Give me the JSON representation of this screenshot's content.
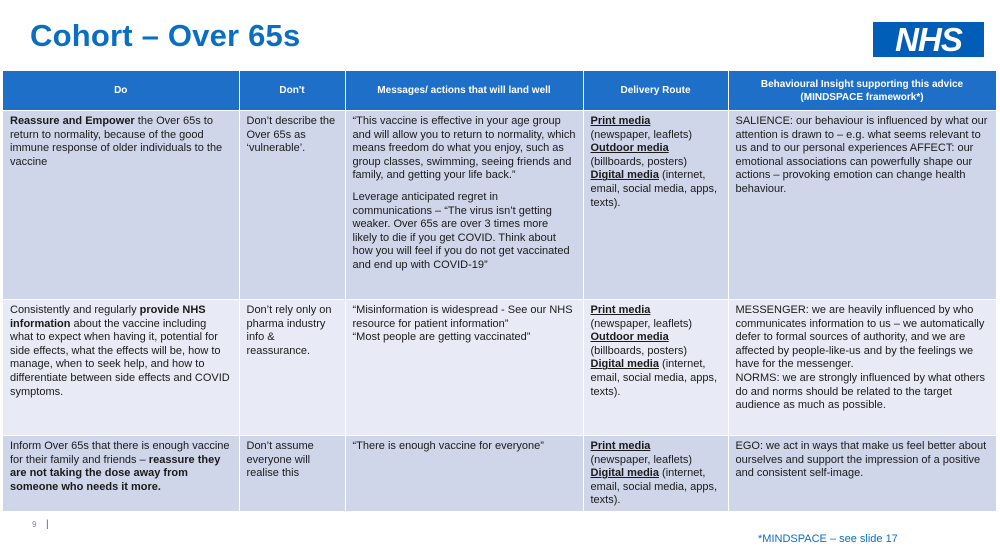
{
  "title": "Cohort – Over 65s",
  "logo": "NHS",
  "colors": {
    "accent": "#0a6fc2",
    "header": "#1e6fc8",
    "row_dark": "#cfd6ea",
    "row_light": "#e8ebf5"
  },
  "headers": {
    "do": "Do",
    "dont": "Don't",
    "messages": "Messages/ actions that will land well",
    "delivery": "Delivery Route",
    "insight_1": "Behavioural Insight supporting this advice",
    "insight_2": "(MINDSPACE framework*)"
  },
  "rows": [
    {
      "do_bold": "Reassure and Empower",
      "do_rest": " the Over 65s to return to normality, because of the good immune response of older individuals to the vaccine",
      "dont": "Don’t describe the Over 65s as ‘vulnerable’.",
      "msg_1": "“This vaccine is effective in your age group and will allow you to return to normality, which means freedom do what you enjoy, such as group classes, swimming, seeing friends and family, and getting your life back.”",
      "msg_2": "Leverage anticipated regret in communications – “The virus isn’t getting weaker. Over 65s are over 3 times more likely to die if you get COVID. Think about how you will feel if you do not get vaccinated and end up with COVID-19”",
      "print_label": "Print media",
      "print_detail": "(newspaper, leaflets)",
      "outdoor_label": "Outdoor media",
      "outdoor_detail": "(billboards, posters)",
      "digital_label": "Digital media",
      "digital_detail": " (internet, email, social media, apps, texts).",
      "insight": "SALIENCE: our behaviour is influenced by what our attention is drawn to – e.g. what seems relevant to us and to our personal experiences AFFECT: our emotional associations can powerfully shape our actions – provoking emotion can change health behaviour."
    },
    {
      "do_pre": "Consistently and regularly ",
      "do_bold": "provide NHS information",
      "do_rest": " about the vaccine including what to expect when having it, potential for side effects, what the effects will be, how to manage, when to seek help, and how to differentiate between side effects and COVID symptoms.",
      "dont": "Don’t rely only on pharma industry info & reassurance.",
      "msg_1": "“Misinformation is widespread - See our NHS resource for patient information”",
      "msg_2": "“Most people are getting vaccinated”",
      "print_label": "Print media",
      "print_detail": "(newspaper, leaflets)",
      "outdoor_label": "Outdoor media",
      "outdoor_detail": "(billboards, posters)",
      "digital_label": "Digital media",
      "digital_detail": " (internet, email, social media, apps, texts).",
      "insight_1": "MESSENGER: we are heavily influenced by who communicates information to us – we automatically defer to formal sources of authority, and we are affected by people-like-us and by the feelings we have for the messenger.",
      "insight_2": "NORMS: we are strongly influenced by what others do and norms should be related to the target audience as much as possible."
    },
    {
      "do_pre": "Inform Over 65s that there is enough vaccine for their family and friends – ",
      "do_bold": "reassure they are not taking the dose away from someone who needs it more.",
      "dont": "Don’t assume everyone will realise this",
      "msg_1": "“There is enough vaccine for everyone”",
      "print_label": "Print media",
      "print_detail": "(newspaper, leaflets)",
      "digital_label": "Digital media",
      "digital_detail": " (internet, email, social media, apps, texts).",
      "insight": "EGO: we act in ways that make us feel better about ourselves and support the impression of a positive and consistent self-image."
    }
  ],
  "footer": {
    "page_number": "9",
    "separator": "|",
    "footnote": "*MINDSPACE – see slide 17"
  }
}
